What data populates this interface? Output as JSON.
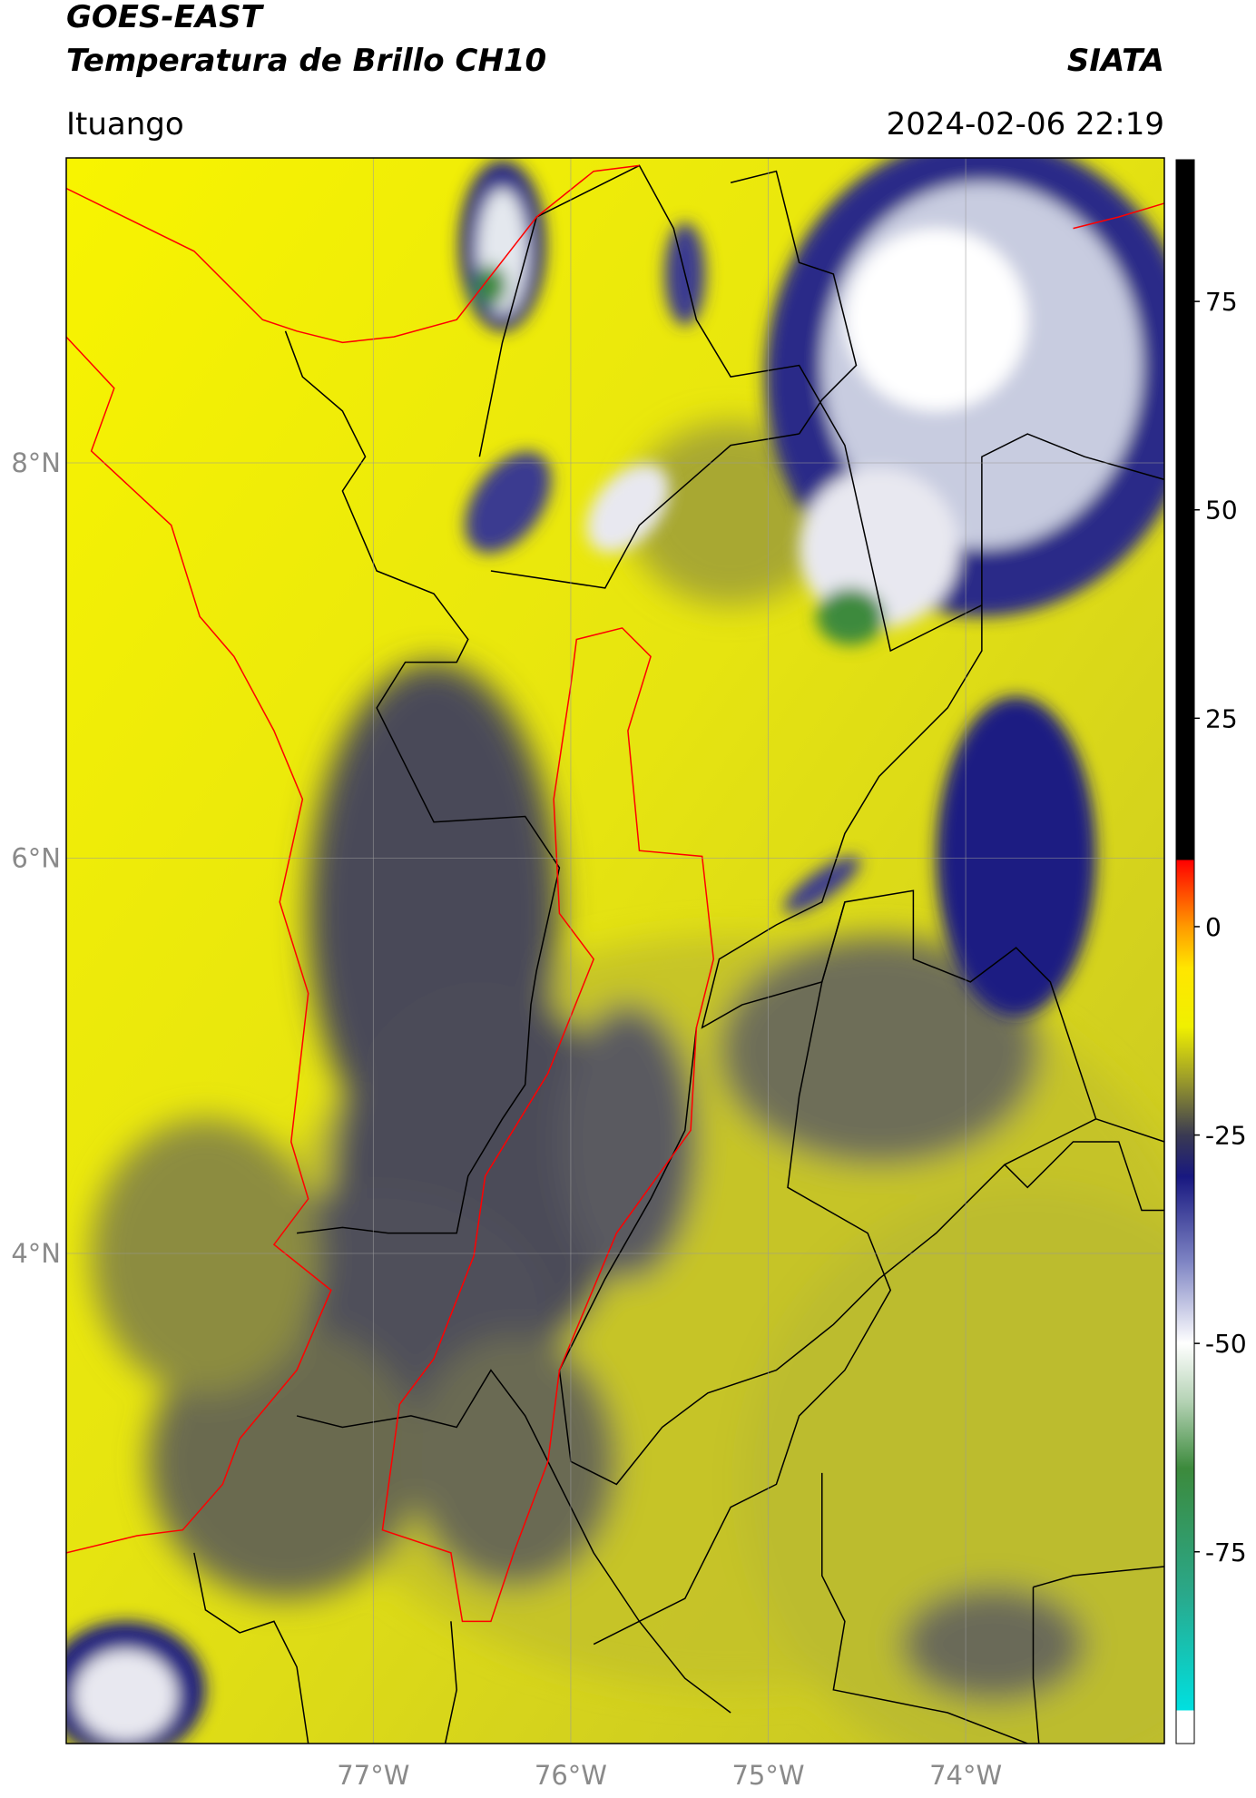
{
  "chart_data": {
    "type": "map",
    "title": "GOES-EAST",
    "subtitle": "Temperatura de Brillo CH10",
    "source": "SIATA",
    "location": "Ituango",
    "datetime": "2024-02-06 22:19",
    "xlim": [
      -78.555,
      -72.994
    ],
    "ylim": [
      1.52,
      9.543
    ],
    "xticks": [
      {
        "value": -77,
        "label": "77°W"
      },
      {
        "value": -76,
        "label": "76°W"
      },
      {
        "value": -75,
        "label": "75°W"
      },
      {
        "value": -74,
        "label": "74°W"
      }
    ],
    "yticks": [
      {
        "value": 4,
        "label": "4°N"
      },
      {
        "value": 6,
        "label": "6°N"
      },
      {
        "value": 8,
        "label": "8°N"
      }
    ],
    "grid": true,
    "colorbar": {
      "lim": [
        -98,
        92
      ],
      "ticks": [
        -75,
        -50,
        -25,
        0,
        25,
        50,
        75
      ],
      "colormap": [
        {
          "value": -98,
          "color": "#ffffff"
        },
        {
          "value": -94,
          "color": "#ffffff"
        },
        {
          "value": -94,
          "color": "#00e0e0"
        },
        {
          "value": -80,
          "color": "#2aa88a"
        },
        {
          "value": -65,
          "color": "#3c8a3c"
        },
        {
          "value": -57,
          "color": "#b4d2b4"
        },
        {
          "value": -50,
          "color": "#ffffff"
        },
        {
          "value": -40,
          "color": "#7c82c2"
        },
        {
          "value": -30,
          "color": "#181880"
        },
        {
          "value": -25,
          "color": "#3a3a52"
        },
        {
          "value": -18,
          "color": "#a0a028"
        },
        {
          "value": -12,
          "color": "#f0f000"
        },
        {
          "value": -5,
          "color": "#ffe600"
        },
        {
          "value": 0,
          "color": "#ff9a00"
        },
        {
          "value": 8,
          "color": "#ff0000"
        },
        {
          "value": 8,
          "color": "#000000"
        },
        {
          "value": 92,
          "color": "#000000"
        }
      ]
    }
  }
}
